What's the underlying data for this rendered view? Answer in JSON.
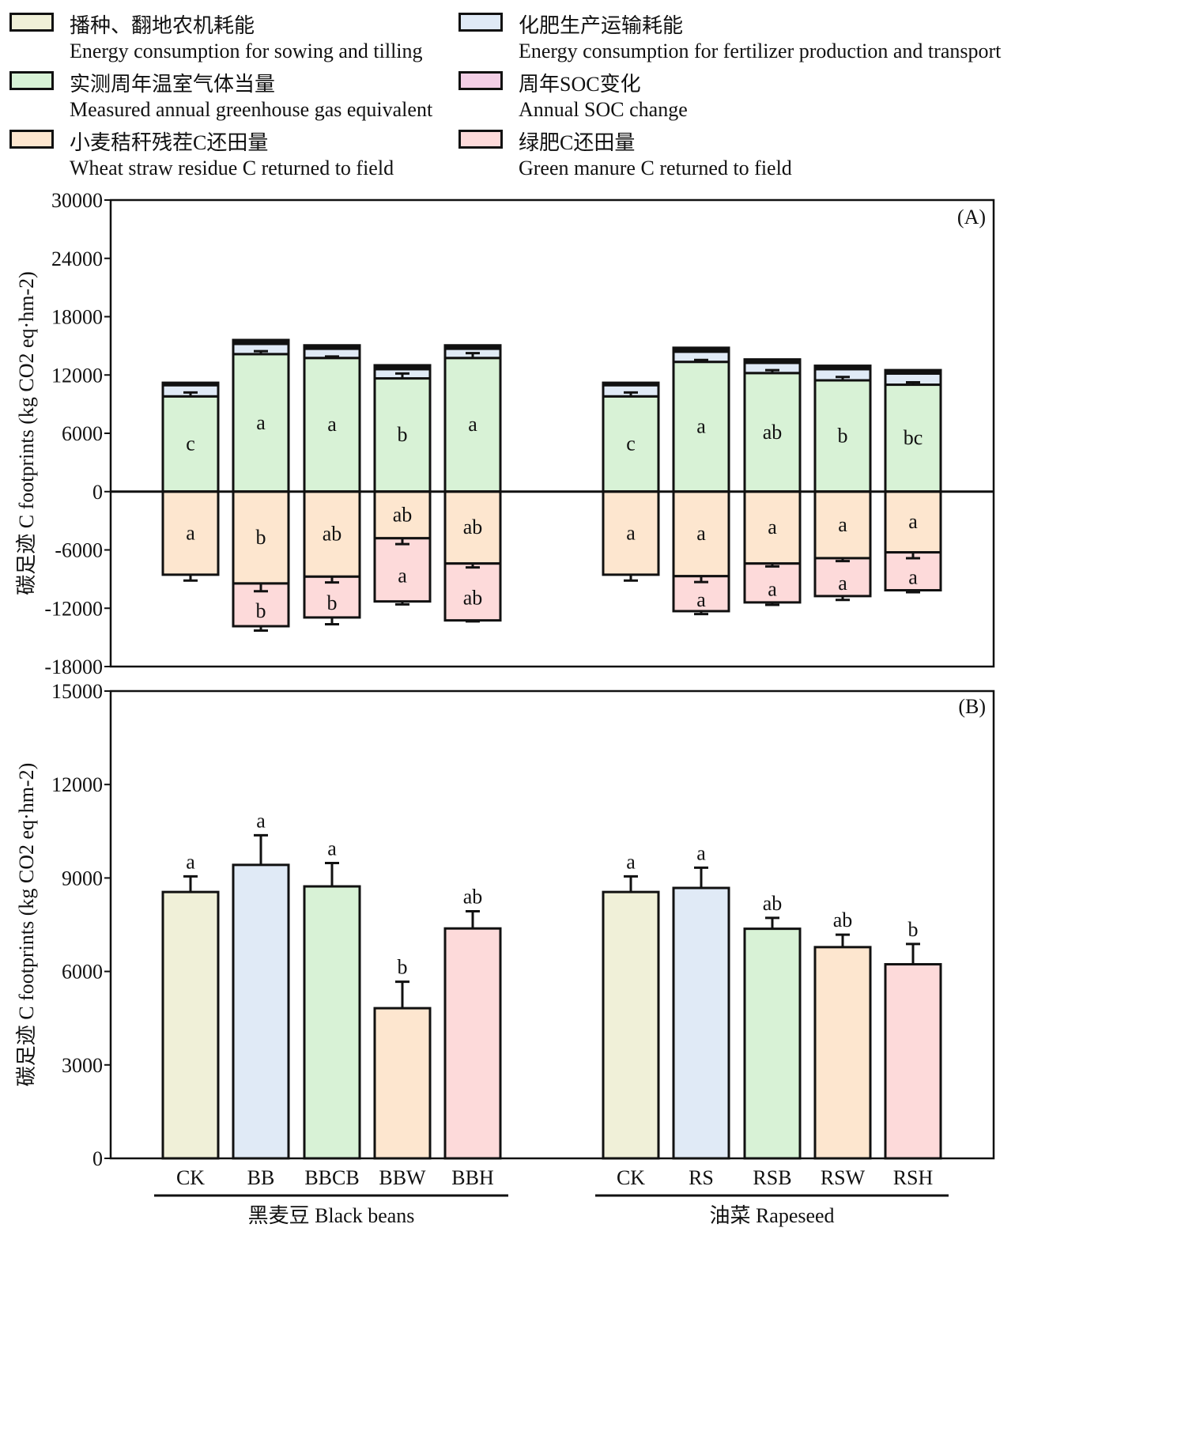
{
  "legend": [
    {
      "cn": "播种、翻地农机耗能",
      "en": "Energy consumption for sowing and tilling",
      "color": "#f0f0d8"
    },
    {
      "cn": "化肥生产运输耗能",
      "en": "Energy consumption for fertilizer production and transport",
      "color": "#e0eaf6"
    },
    {
      "cn": "实测周年温室气体当量",
      "en": "Measured annual greenhouse gas equivalent",
      "color": "#d8f2d6"
    },
    {
      "cn": "周年SOC变化",
      "en": "Annual SOC change",
      "color": "#f3cfe6"
    },
    {
      "cn": "小麦秸秆残茬C还田量",
      "en": "Wheat straw residue C returned to field",
      "color": "#fde6cf"
    },
    {
      "cn": "绿肥C还田量",
      "en": "Green manure C returned to field",
      "color": "#fddada"
    }
  ],
  "chart_data": [
    {
      "type": "bar",
      "subtype": "stacked",
      "panel_label": "(A)",
      "ylabel": "碳足迹 C footprints (kg CO2 eq·hm-2)",
      "ylim": [
        -18000,
        30000
      ],
      "yticks": [
        30000,
        24000,
        18000,
        12000,
        6000,
        0,
        -6000,
        -12000,
        -18000
      ],
      "categories": [
        "CK",
        "BB",
        "BBCB",
        "BBW",
        "BBH",
        "CK",
        "RS",
        "RSB",
        "RSW",
        "RSH"
      ],
      "groups": [
        {
          "name": "黑麦豆 Black beans",
          "categories": [
            "CK",
            "BB",
            "BBCB",
            "BBW",
            "BBH"
          ]
        },
        {
          "name": "油菜 Rapeseed",
          "categories": [
            "CK",
            "RS",
            "RSB",
            "RSW",
            "RSH"
          ]
        }
      ],
      "series": [
        {
          "name": "Measured annual greenhouse gas equivalent",
          "color": "#d8f2d6",
          "values": [
            9800,
            14150,
            13750,
            11650,
            13750,
            9800,
            13350,
            12200,
            11450,
            11000
          ],
          "errors": [
            400,
            300,
            150,
            500,
            500,
            400,
            200,
            300,
            350,
            250
          ],
          "letters": [
            "c",
            "a",
            "a",
            "b",
            "a",
            "c",
            "a",
            "ab",
            "b",
            "bc"
          ]
        },
        {
          "name": "Energy consumption for fertilizer production and transport",
          "color": "#e0eaf6",
          "values": [
            1150,
            1050,
            950,
            950,
            950,
            1150,
            1050,
            1050,
            1150,
            1150
          ],
          "errors": [
            0,
            0,
            0,
            0,
            0,
            0,
            0,
            0,
            0,
            0
          ]
        },
        {
          "name": "Energy consumption for sowing and tilling",
          "color": "#f0f0d8",
          "values": [
            250,
            400,
            350,
            400,
            350,
            250,
            400,
            350,
            350,
            350
          ],
          "errors": [
            0,
            0,
            0,
            0,
            0,
            0,
            0,
            0,
            0,
            0
          ]
        },
        {
          "name": "Wheat straw residue C returned to field",
          "color": "#fde6cf",
          "values": [
            -8550,
            -9450,
            -8750,
            -4800,
            -7400,
            -8550,
            -8700,
            -7400,
            -6850,
            -6250
          ],
          "errors": [
            600,
            800,
            600,
            600,
            400,
            600,
            600,
            300,
            300,
            600
          ],
          "letters": [
            "a",
            "b",
            "ab",
            "ab",
            "ab",
            "a",
            "a",
            "a",
            "a",
            "a"
          ]
        },
        {
          "name": "Green manure C returned to field",
          "color": "#fddada",
          "values": [
            0,
            -4400,
            -4200,
            -6500,
            -5850,
            0,
            -3600,
            -4000,
            -3900,
            -3900
          ],
          "errors": [
            0,
            450,
            700,
            300,
            100,
            0,
            300,
            250,
            400,
            200
          ],
          "letters": [
            "",
            "b",
            "b",
            "a",
            "ab",
            "",
            "a",
            "a",
            "a",
            "a"
          ]
        },
        {
          "name": "Annual SOC change",
          "color": "#f3cfe6",
          "values": [
            0,
            0,
            0,
            0,
            0,
            0,
            0,
            0,
            0,
            0
          ]
        }
      ]
    },
    {
      "type": "bar",
      "panel_label": "(B)",
      "ylabel": "碳足迹 C footprints (kg CO2 eq·hm-2)",
      "ylim": [
        0,
        15000
      ],
      "yticks": [
        15000,
        12000,
        9000,
        6000,
        3000,
        0
      ],
      "categories": [
        "CK",
        "BB",
        "BBCB",
        "BBW",
        "BBH",
        "CK",
        "RS",
        "RSB",
        "RSW",
        "RSH"
      ],
      "groups": [
        {
          "name": "黑麦豆 Black beans",
          "categories": [
            "CK",
            "BB",
            "BBCB",
            "BBW",
            "BBH"
          ]
        },
        {
          "name": "油菜 Rapeseed",
          "categories": [
            "CK",
            "RS",
            "RSB",
            "RSW",
            "RSH"
          ]
        }
      ],
      "values": [
        8550,
        9420,
        8730,
        4820,
        7380,
        8550,
        8680,
        7370,
        6780,
        6230
      ],
      "errors": [
        500,
        950,
        750,
        850,
        550,
        500,
        650,
        350,
        400,
        650
      ],
      "letters": [
        "a",
        "a",
        "a",
        "b",
        "ab",
        "a",
        "a",
        "ab",
        "ab",
        "b"
      ],
      "colors": [
        "#f0f0d8",
        "#e0eaf6",
        "#d8f2d6",
        "#fde6cf",
        "#fddada",
        "#f0f0d8",
        "#e0eaf6",
        "#d8f2d6",
        "#fde6cf",
        "#fddada"
      ]
    }
  ]
}
